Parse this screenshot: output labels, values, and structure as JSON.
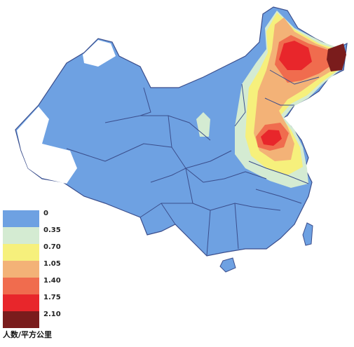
{
  "legend": {
    "title": "人数/平方公里",
    "items": [
      {
        "label": "0",
        "color": "#6ea1e2"
      },
      {
        "label": "0.35",
        "color": "#d4ebd2"
      },
      {
        "label": "0.70",
        "color": "#f6f07c"
      },
      {
        "label": "1.05",
        "color": "#f3b277"
      },
      {
        "label": "1.40",
        "color": "#f06c4e"
      },
      {
        "label": "1.75",
        "color": "#e8262b"
      },
      {
        "label": "2.10",
        "color": "#7a1c1c"
      }
    ]
  }
}
